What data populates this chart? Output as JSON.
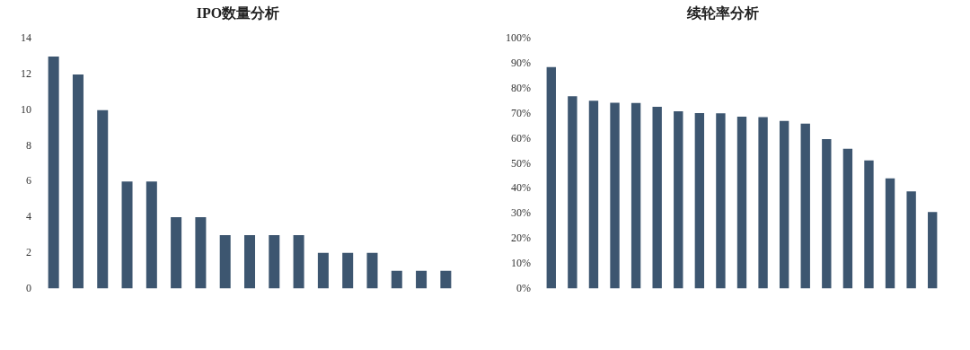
{
  "chart_data": [
    {
      "type": "bar",
      "title": "IPO数量分析",
      "categories": [
        null,
        null,
        null,
        null,
        null,
        null,
        null,
        null,
        null,
        null,
        null,
        null,
        null,
        null,
        null,
        null,
        null
      ],
      "values": [
        13,
        12,
        10,
        6,
        6,
        4,
        4,
        3,
        3,
        3,
        3,
        2,
        2,
        2,
        1,
        1,
        1
      ],
      "color": "#3d5670",
      "ylim": [
        0,
        14
      ],
      "yticks": [
        0,
        2,
        4,
        6,
        8,
        10,
        12,
        14
      ]
    },
    {
      "type": "bar",
      "title": "续轮率分析",
      "categories": [
        null,
        null,
        null,
        null,
        null,
        null,
        null,
        null,
        null,
        null,
        null,
        null,
        null,
        null,
        null,
        null,
        null,
        null,
        null
      ],
      "values": [
        88.7,
        77,
        75.2,
        74.4,
        74.3,
        72.8,
        71,
        70.3,
        70.2,
        68.8,
        68.6,
        67.1,
        66,
        59.8,
        56,
        51.3,
        44.1,
        38.9,
        30.7
      ],
      "color": "#3d5670",
      "ylim": [
        0,
        100
      ],
      "yticks": [
        {
          "value": 0,
          "label": "0%"
        },
        {
          "value": 10,
          "label": "10%"
        },
        {
          "value": 20,
          "label": "20%"
        },
        {
          "value": 30,
          "label": "30%"
        },
        {
          "value": 40,
          "label": "40%"
        },
        {
          "value": 50,
          "label": "50%"
        },
        {
          "value": 60,
          "label": "60%"
        },
        {
          "value": 70,
          "label": "70%"
        },
        {
          "value": 80,
          "label": "80%"
        },
        {
          "value": 90,
          "label": "90%"
        },
        {
          "value": 100,
          "label": "100%"
        }
      ]
    }
  ]
}
